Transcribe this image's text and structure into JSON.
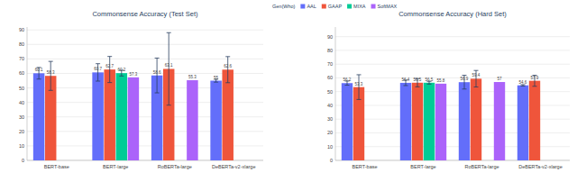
{
  "chart_data": [
    {
      "type": "bar",
      "title": "Commonsense Accuracy (Test Set)",
      "categories": [
        "BERT-base",
        "BERT-large",
        "RoBERTa-large",
        "DeBERTa-v2-xlarge"
      ],
      "legend_title": "Gen(Who)",
      "legend": "top",
      "grid": true,
      "data_labels": true,
      "ylim": [
        0,
        92
      ],
      "yticks": [
        0,
        10,
        20,
        30,
        40,
        50,
        60,
        70,
        80,
        90
      ],
      "series": [
        {
          "name": "AAL",
          "color": "#636efa",
          "values": [
            60.1,
            60.7,
            58.6,
            55.0
          ],
          "errors": [
            4,
            6,
            12,
            1
          ]
        },
        {
          "name": "GAAP",
          "color": "#ef553b",
          "values": [
            58.3,
            62.7,
            63.1,
            62.6
          ],
          "errors": [
            10,
            9,
            25,
            9
          ]
        },
        {
          "name": "MIXA",
          "color": "#00cc96",
          "values": [
            null,
            60.2,
            null,
            null
          ],
          "errors": [
            null,
            2,
            null,
            null
          ]
        },
        {
          "name": "SoftMAX",
          "color": "#ab63fa",
          "values": [
            null,
            57.3,
            55.3,
            null
          ],
          "errors": [
            null,
            null,
            null,
            null
          ]
        }
      ]
    },
    {
      "type": "bar",
      "title": "Commonsense Accuracy (Hard Set)",
      "categories": [
        "BERT-base",
        "BERT-large",
        "RoBERTa-large",
        "DeBERTa-v2-xlarge"
      ],
      "grid": true,
      "data_labels": true,
      "ylim": [
        0,
        97
      ],
      "yticks": [
        0,
        10,
        20,
        30,
        40,
        50,
        60,
        70,
        80,
        90
      ],
      "series": [
        {
          "name": "AAL",
          "color": "#636efa",
          "values": [
            56.2,
            56.4,
            56.9,
            54.6
          ],
          "errors": [
            1.5,
            2,
            5,
            0.5
          ]
        },
        {
          "name": "GAAP",
          "color": "#ef553b",
          "values": [
            53.3,
            56.5,
            59.4,
            57.9
          ],
          "errors": [
            9,
            3,
            6,
            4
          ]
        },
        {
          "name": "MIXA",
          "color": "#00cc96",
          "values": [
            null,
            56.5,
            null,
            null
          ],
          "errors": [
            null,
            1,
            null,
            null
          ]
        },
        {
          "name": "SoftMAX",
          "color": "#ab63fa",
          "values": [
            null,
            55.8,
            57,
            null
          ],
          "errors": [
            null,
            null,
            null,
            null
          ]
        }
      ]
    }
  ]
}
